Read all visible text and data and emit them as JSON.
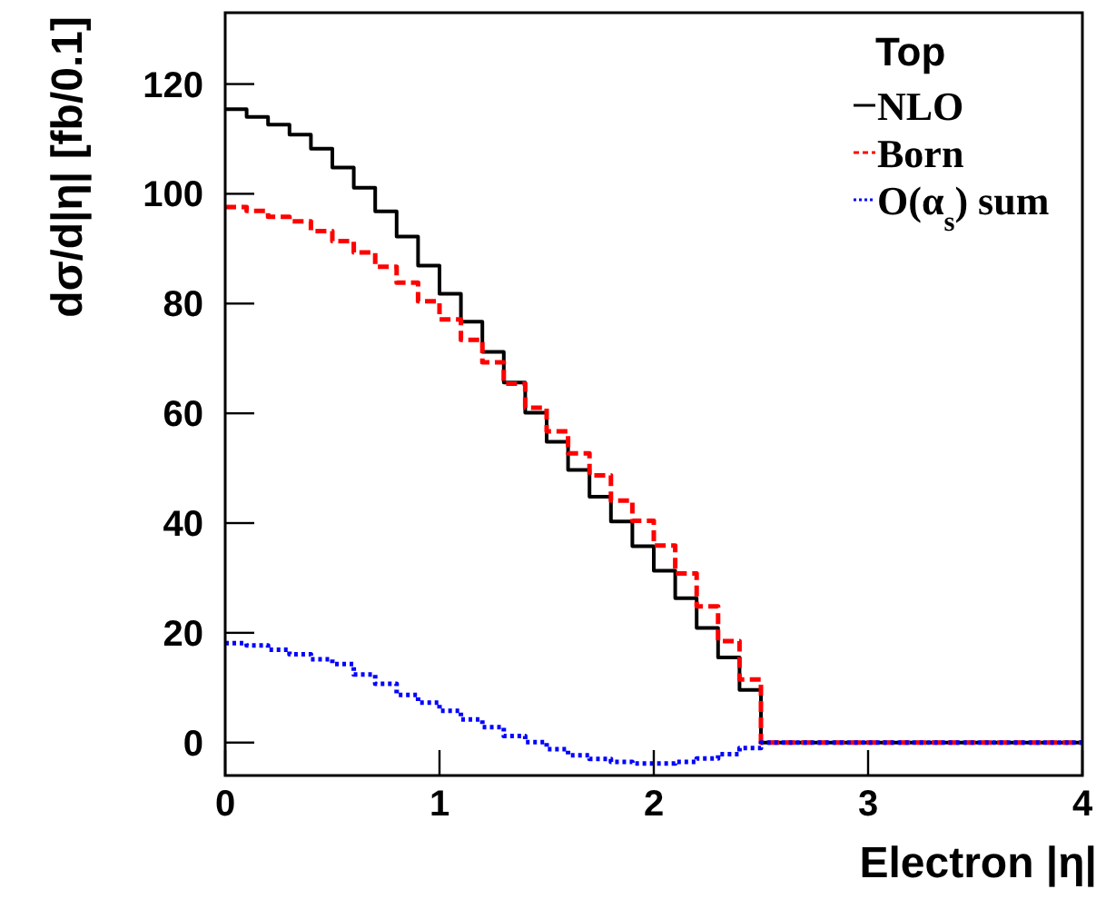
{
  "chart_data": {
    "type": "step",
    "xlabel": "Electron |η|",
    "ylabel": "dσ/d|η| [fb/0.1]",
    "legend_title": "Top",
    "legend": "top right",
    "grid": false,
    "x": [
      0,
      0.1,
      0.2,
      0.3,
      0.4,
      0.5,
      0.6,
      0.7,
      0.8,
      0.9,
      1.0,
      1.1,
      1.2,
      1.3,
      1.4,
      1.5,
      1.6,
      1.7,
      1.8,
      1.9,
      2.0,
      2.1,
      2.2,
      2.3,
      2.4,
      2.5,
      2.6,
      2.7,
      2.8,
      2.9,
      3.0,
      3.1,
      3.2,
      3.3,
      3.4,
      3.5,
      3.6,
      3.7,
      3.8,
      3.9,
      4.0
    ],
    "series": [
      {
        "name": "NLO",
        "color": "#000000",
        "line_style": "solid",
        "values": [
          115.4,
          114.0,
          112.6,
          110.8,
          108.2,
          104.8,
          101.1,
          96.8,
          92.2,
          86.9,
          81.8,
          76.7,
          71.2,
          65.6,
          60.1,
          54.8,
          49.7,
          44.8,
          40.3,
          35.8,
          31.3,
          26.3,
          20.9,
          15.5,
          9.6,
          0,
          0,
          0,
          0,
          0,
          0,
          0,
          0,
          0,
          0,
          0,
          0,
          0,
          0,
          0,
          0
        ]
      },
      {
        "name": "Born",
        "color": "#ff0000",
        "line_style": "dashed",
        "values": [
          97.6,
          96.9,
          95.8,
          95.0,
          93.2,
          91.4,
          89.3,
          86.7,
          83.8,
          80.4,
          77.1,
          73.4,
          69.3,
          65.4,
          61.0,
          56.7,
          52.7,
          48.7,
          44.1,
          40.4,
          35.9,
          30.8,
          24.8,
          18.5,
          11.5,
          0,
          0,
          0,
          0,
          0,
          0,
          0,
          0,
          0,
          0,
          0,
          0,
          0,
          0,
          0,
          0
        ]
      },
      {
        "name": "O(α$_{s}$) sum",
        "color": "#0000ff",
        "line_style": "dotted",
        "values": [
          18.1,
          17.7,
          16.9,
          16.1,
          15.2,
          14.3,
          12.4,
          10.7,
          8.7,
          7.3,
          5.8,
          4.2,
          2.8,
          1.2,
          0.1,
          -1.2,
          -2.3,
          -3.0,
          -3.5,
          -3.8,
          -3.8,
          -3.5,
          -2.9,
          -2.1,
          -1.0,
          0,
          0,
          0,
          0,
          0,
          0,
          0,
          0,
          0,
          0,
          0,
          0,
          0,
          0,
          0,
          0
        ]
      }
    ],
    "xlim": [
      0,
      4
    ],
    "xticks": [
      0,
      1,
      2,
      3,
      4
    ],
    "ylim": [
      -6,
      133
    ],
    "yticks": [
      0,
      20,
      40,
      60,
      80,
      100,
      120
    ]
  }
}
